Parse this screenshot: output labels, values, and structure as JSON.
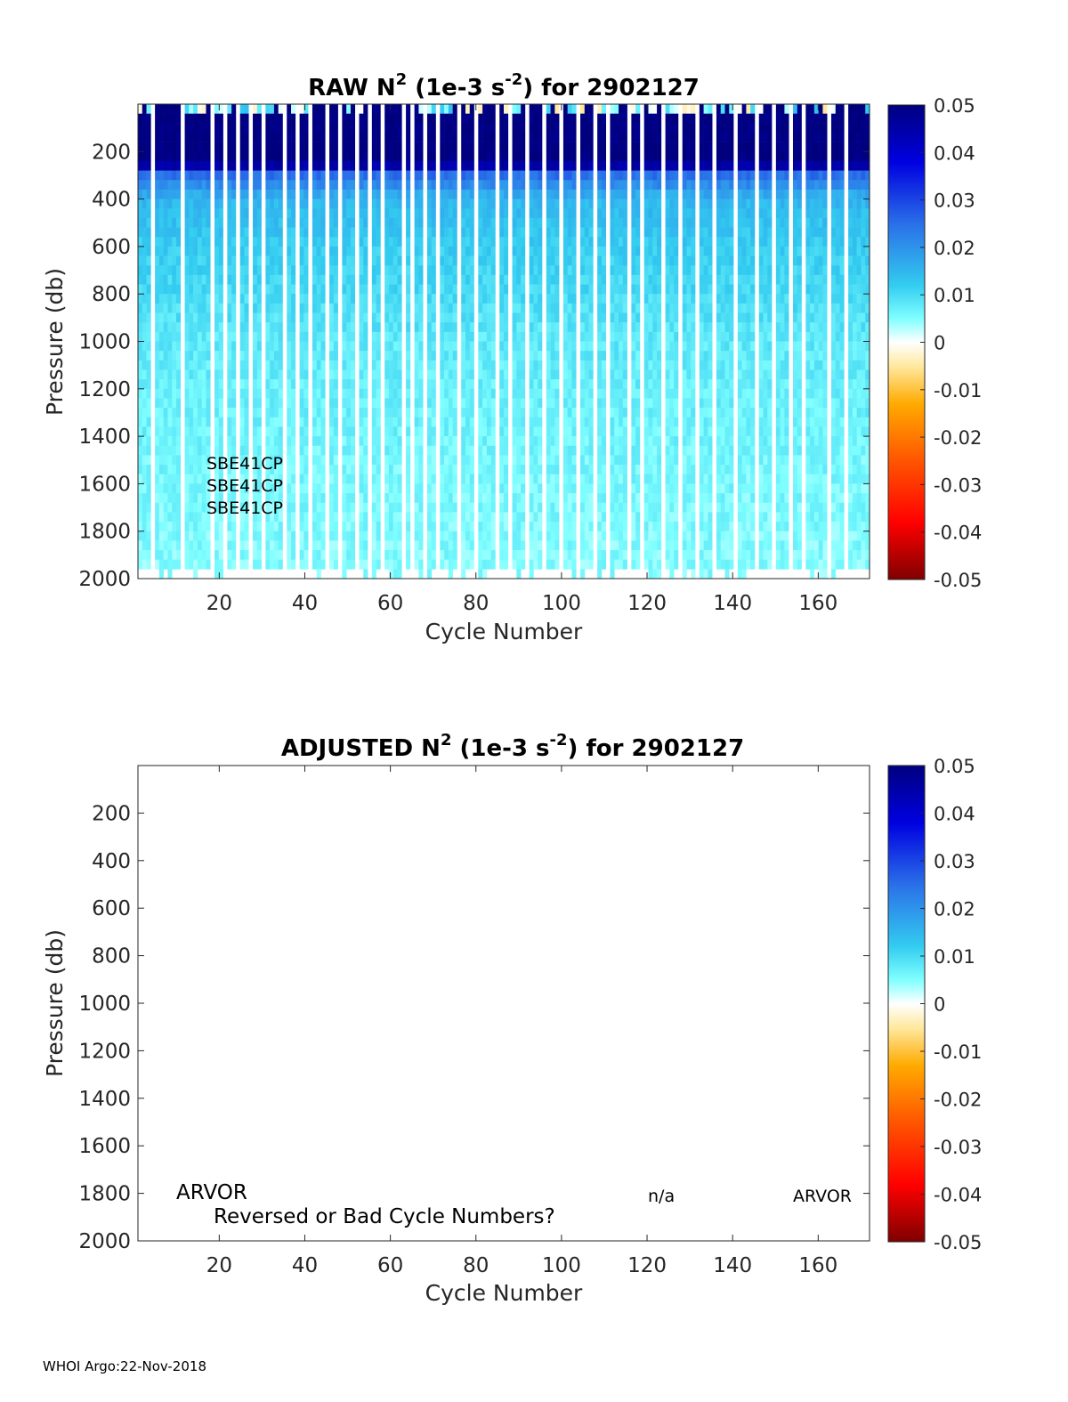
{
  "footer": "WHOI Argo:22-Nov-2018",
  "chart_data": [
    {
      "type": "heatmap",
      "title": {
        "pre": "RAW N",
        "sup1": "2",
        "mid": " (1e-3 s",
        "sup2": "-2",
        "post": ") for 2902127"
      },
      "xlabel": "Cycle Number",
      "ylabel": "Pressure (db)",
      "xlim": [
        1,
        172
      ],
      "ylim": [
        2000,
        0
      ],
      "xticks": [
        20,
        40,
        60,
        80,
        100,
        120,
        140,
        160
      ],
      "yticks": [
        200,
        400,
        600,
        800,
        1000,
        1200,
        1400,
        1600,
        1800,
        2000
      ],
      "colorbar": {
        "range": [
          -0.05,
          0.05
        ],
        "ticks": [
          "0.05",
          "0.04",
          "0.03",
          "0.02",
          "0.01",
          "0",
          "-0.01",
          "-0.02",
          "-0.03",
          "-0.04",
          "-0.05"
        ]
      },
      "annotations": [
        "SBE41CP",
        "SBE41CP",
        "SBE41CP"
      ],
      "missing_cycles": [
        4,
        11,
        18,
        21,
        24,
        27,
        30,
        35,
        38,
        41,
        45,
        48,
        52,
        55,
        58,
        63,
        65,
        68,
        71,
        76,
        80,
        85,
        88,
        92,
        96,
        100,
        104,
        108,
        111,
        116,
        119,
        124,
        128,
        132,
        136,
        141,
        146,
        150,
        154,
        157,
        163,
        167
      ],
      "depth_profile": {
        "pressure": [
          0,
          100,
          250,
          300,
          400,
          600,
          1000,
          1500,
          2000
        ],
        "n2": [
          0.05,
          0.05,
          0.05,
          0.025,
          0.015,
          0.012,
          0.008,
          0.006,
          0.005
        ]
      }
    },
    {
      "type": "heatmap",
      "title": {
        "pre": "ADJUSTED N",
        "sup1": "2",
        "mid": " (1e-3 s",
        "sup2": "-2",
        "post": ") for 2902127"
      },
      "xlabel": "Cycle Number",
      "ylabel": "Pressure (db)",
      "xlim": [
        1,
        172
      ],
      "ylim": [
        2000,
        0
      ],
      "xticks": [
        20,
        40,
        60,
        80,
        100,
        120,
        140,
        160
      ],
      "yticks": [
        200,
        400,
        600,
        800,
        1000,
        1200,
        1400,
        1600,
        1800,
        2000
      ],
      "colorbar": {
        "range": [
          -0.05,
          0.05
        ],
        "ticks": [
          "0.05",
          "0.04",
          "0.03",
          "0.02",
          "0.01",
          "0",
          "-0.01",
          "-0.02",
          "-0.03",
          "-0.04",
          "-0.05"
        ]
      },
      "annotations": {
        "left": "ARVOR",
        "mid": "n/a",
        "right": "ARVOR",
        "note": "Reversed or Bad Cycle Numbers?"
      },
      "values": []
    }
  ]
}
